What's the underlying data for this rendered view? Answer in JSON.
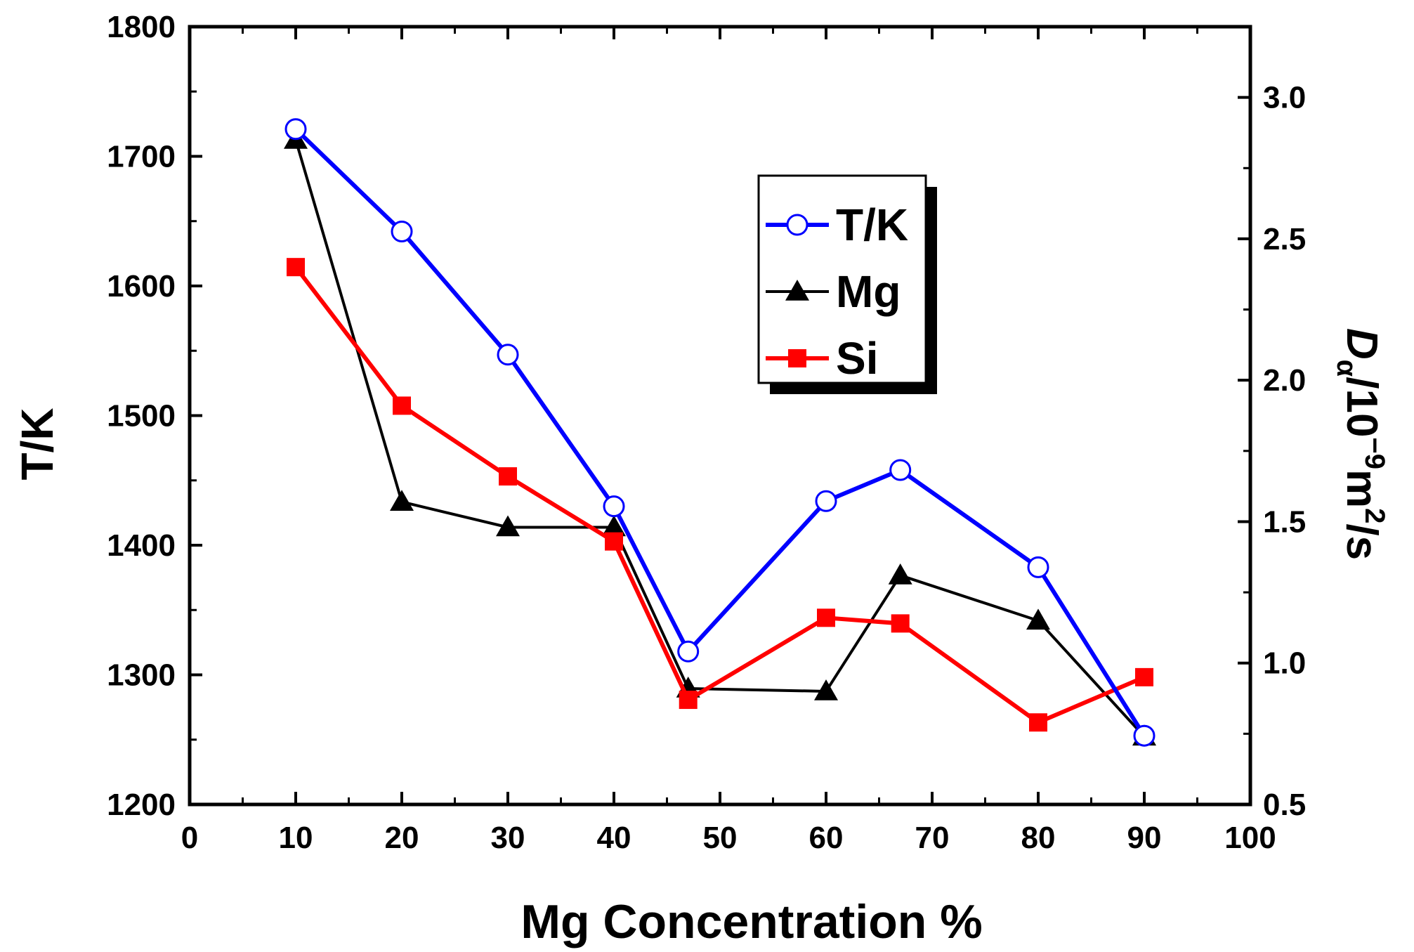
{
  "chart_data": {
    "type": "line",
    "xlabel": "Mg Concentration %",
    "ylabel": "T/K",
    "y2label": {
      "main": "D",
      "sub": "α",
      "rest": "/10",
      "exp": "−9",
      "unit": "m",
      "unit_exp": "2",
      "tail": "/s"
    },
    "xlim": [
      0,
      100
    ],
    "ylim": [
      1200,
      1800
    ],
    "y2lim": [
      0.5,
      3.25
    ],
    "xticks": [
      "0",
      "10",
      "20",
      "30",
      "40",
      "50",
      "60",
      "70",
      "80",
      "90",
      "100"
    ],
    "yticks": [
      "1200",
      "1300",
      "1400",
      "1500",
      "1600",
      "1700",
      "1800"
    ],
    "y2ticks": [
      "0.5",
      "1.0",
      "1.5",
      "2.0",
      "2.5",
      "3.0"
    ],
    "grid": false,
    "legend_position": "top-center-right",
    "series": [
      {
        "name": "T/K",
        "axis": "left",
        "color": "#0000ff",
        "marker": "open-circle",
        "x": [
          10,
          20,
          30,
          40,
          47,
          60,
          67,
          80,
          90
        ],
        "y": [
          1721,
          1642,
          1547,
          1430,
          1318,
          1434,
          1458,
          1383,
          1253
        ]
      },
      {
        "name": "Mg",
        "axis": "right",
        "color": "#000000",
        "marker": "triangle",
        "x": [
          10,
          20,
          30,
          40,
          47,
          60,
          67,
          80,
          90
        ],
        "y": [
          2.85,
          1.57,
          1.48,
          1.48,
          0.91,
          0.9,
          1.31,
          1.15,
          0.74
        ]
      },
      {
        "name": "Si",
        "axis": "right",
        "color": "#ff0000",
        "marker": "square",
        "x": [
          10,
          20,
          30,
          40,
          47,
          60,
          67,
          80,
          90
        ],
        "y": [
          2.4,
          1.91,
          1.66,
          1.43,
          0.87,
          1.16,
          1.14,
          0.79,
          0.95
        ]
      }
    ]
  }
}
